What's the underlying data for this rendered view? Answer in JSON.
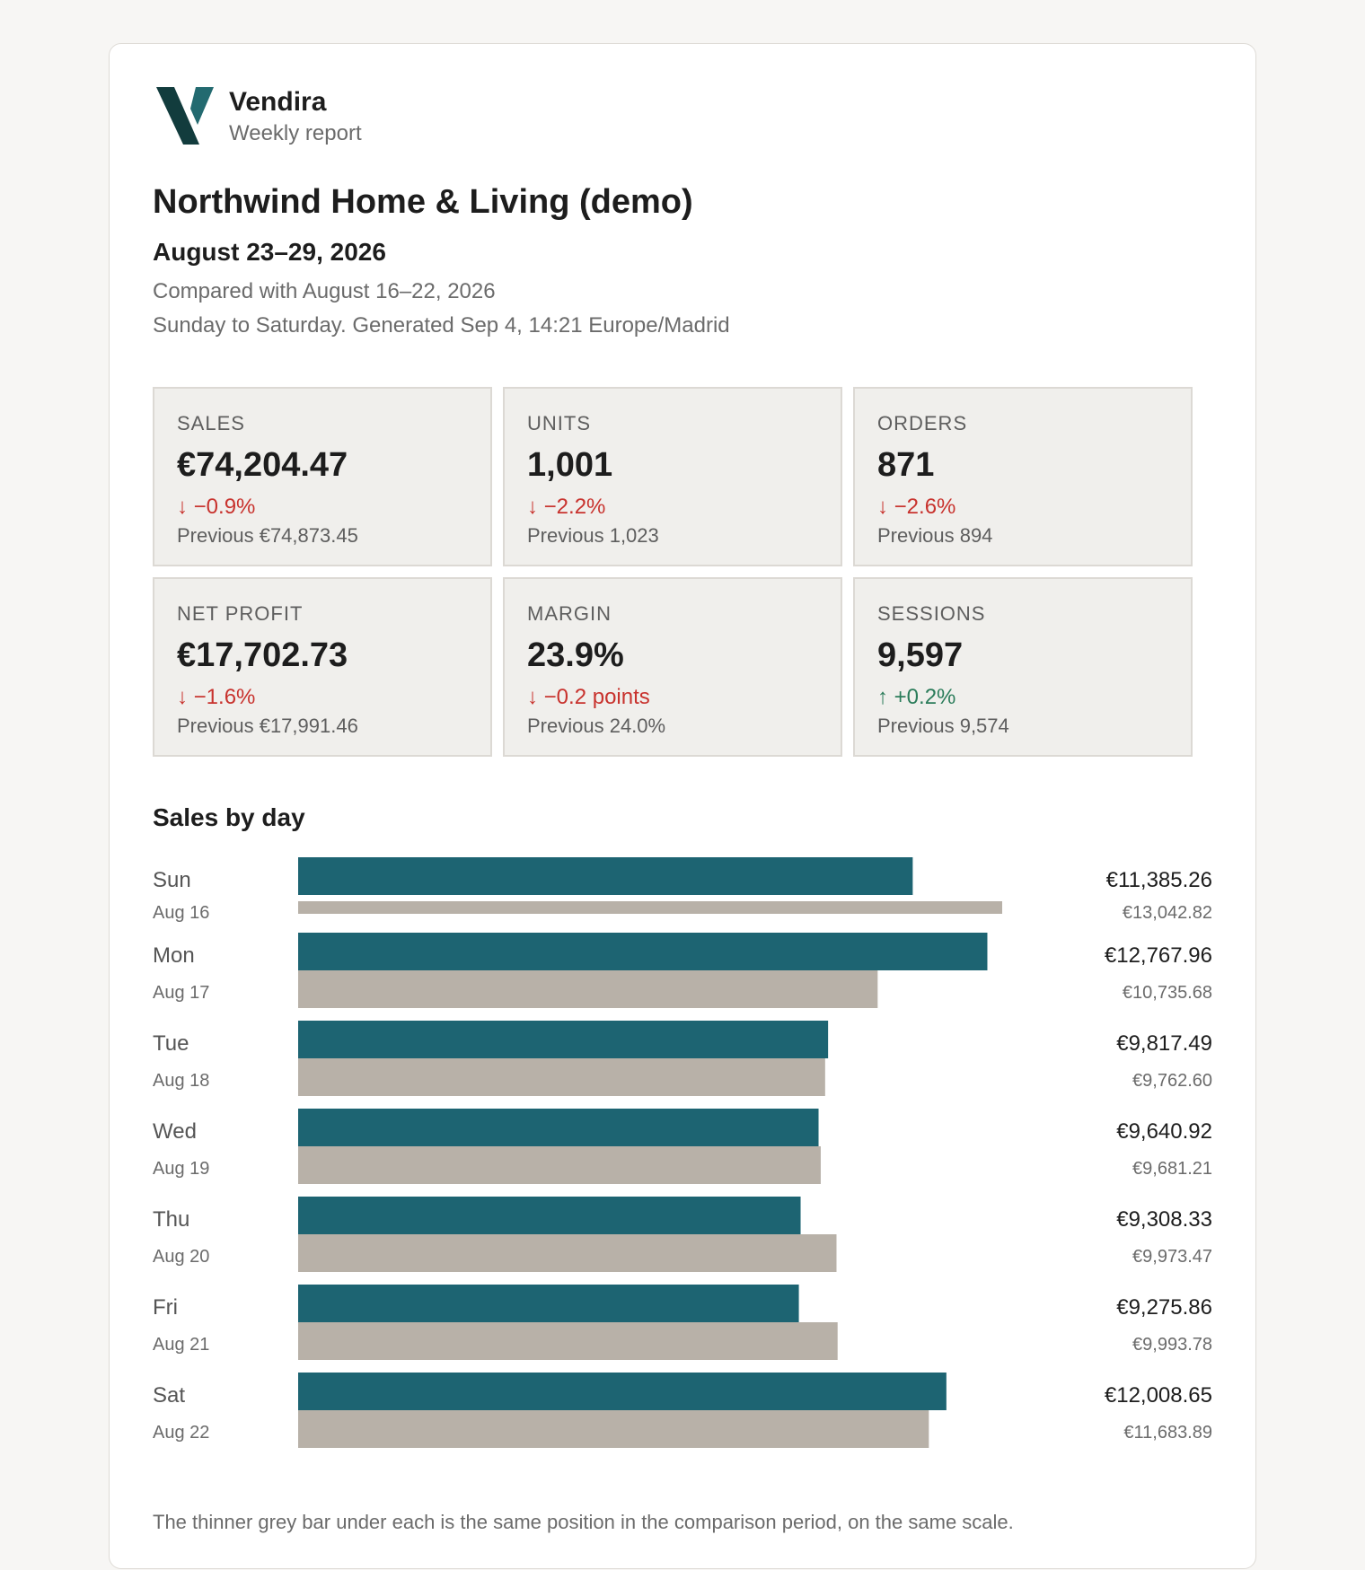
{
  "brand": {
    "name": "Vendira",
    "subtitle": "Weekly report"
  },
  "report": {
    "title": "Northwind Home & Living (demo)",
    "period": "August 23–29, 2026",
    "compared": "Compared with August 16–22, 2026",
    "generated": "Sunday to Saturday. Generated Sep 4, 14:21 Europe/Madrid"
  },
  "colors": {
    "current_bar": "#1d6472",
    "previous_bar": "#b8b1a8",
    "negative": "#c8322d",
    "positive": "#2b7c5a",
    "logo_dark": "#123c3d",
    "logo_light": "#236a70"
  },
  "kpis": [
    {
      "label": "SALES",
      "value": "€74,204.47",
      "delta": "↓ −0.9%",
      "direction": "down",
      "previous": "Previous €74,873.45"
    },
    {
      "label": "UNITS",
      "value": "1,001",
      "delta": "↓ −2.2%",
      "direction": "down",
      "previous": "Previous 1,023"
    },
    {
      "label": "ORDERS",
      "value": "871",
      "delta": "↓ −2.6%",
      "direction": "down",
      "previous": "Previous 894"
    },
    {
      "label": "NET PROFIT",
      "value": "€17,702.73",
      "delta": "↓ −1.6%",
      "direction": "down",
      "previous": "Previous €17,991.46"
    },
    {
      "label": "MARGIN",
      "value": "23.9%",
      "delta": "↓ −0.2 points",
      "direction": "down",
      "previous": "Previous 24.0%"
    },
    {
      "label": "SESSIONS",
      "value": "9,597",
      "delta": "↑ +0.2%",
      "direction": "up",
      "previous": "Previous 9,574"
    }
  ],
  "sales_by_day": {
    "title": "Sales by day",
    "footnote": "The thinner grey bar under each is the same position in the comparison period, on the same scale."
  },
  "chart_data": {
    "type": "bar",
    "categories": [
      "Sun",
      "Mon",
      "Tue",
      "Wed",
      "Thu",
      "Fri",
      "Sat"
    ],
    "comparison_dates": [
      "Aug 16",
      "Aug 17",
      "Aug 18",
      "Aug 19",
      "Aug 20",
      "Aug 21",
      "Aug 22"
    ],
    "series": [
      {
        "values": [
          11385.26,
          12767.96,
          9817.49,
          9640.92,
          9308.33,
          9275.86,
          12008.65
        ],
        "labels": [
          "€11,385.26",
          "€12,767.96",
          "€9,817.49",
          "€9,640.92",
          "€9,308.33",
          "€9,275.86",
          "€12,008.65"
        ]
      },
      {
        "values": [
          13042.82,
          10735.68,
          9762.6,
          9681.21,
          9973.47,
          9993.78,
          11683.89
        ],
        "labels": [
          "€13,042.82",
          "€10,735.68",
          "€9,762.60",
          "€9,681.21",
          "€9,973.47",
          "€9,993.78",
          "€11,683.89"
        ]
      }
    ],
    "orientation": "horizontal",
    "xlim": [
      0,
      13042.82
    ]
  }
}
